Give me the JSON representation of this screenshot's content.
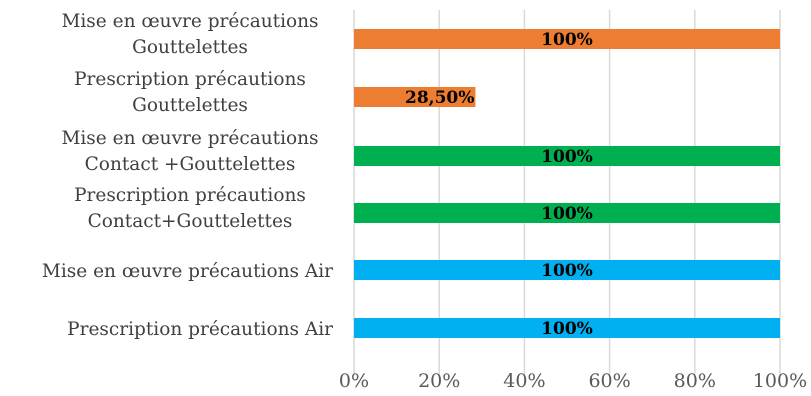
{
  "chart_data": {
    "type": "bar",
    "orientation": "horizontal",
    "title": "",
    "xlabel": "",
    "ylabel": "",
    "xlim": [
      0,
      100
    ],
    "x_ticks": [
      "0%",
      "20%",
      "40%",
      "60%",
      "80%",
      "100%"
    ],
    "grid": true,
    "legend": "none",
    "categories": [
      [
        "Mise en œuvre précautions",
        "Gouttelettes"
      ],
      [
        "Prescription précautions",
        "Gouttelettes"
      ],
      [
        "Mise en œuvre précautions",
        "Contact +Gouttelettes"
      ],
      [
        "Prescription précautions",
        "Contact+Gouttelettes"
      ],
      [
        "Mise en œuvre précautions Air"
      ],
      [
        "Prescription précautions Air"
      ]
    ],
    "values": [
      100,
      28.5,
      100,
      100,
      100,
      100
    ],
    "data_labels": [
      "100%",
      "28,50%",
      "100%",
      "100%",
      "100%",
      "100%"
    ],
    "colors": [
      "#ed7d31",
      "#ed7d31",
      "#00b050",
      "#00b050",
      "#00b0f0",
      "#00b0f0"
    ]
  }
}
